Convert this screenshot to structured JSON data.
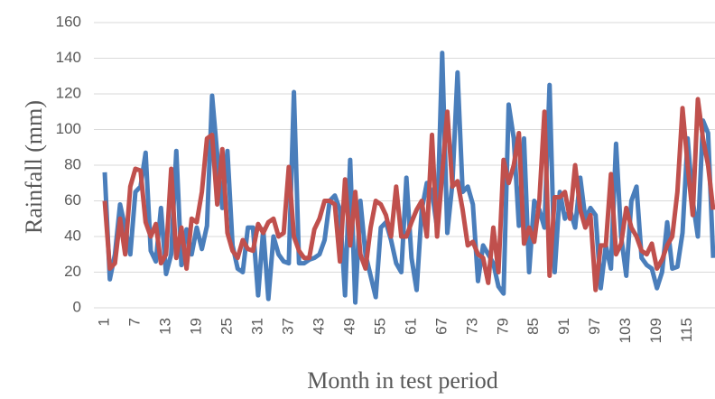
{
  "chart_data": {
    "type": "line",
    "x_label": "Month in test period",
    "y_label": "Rainfall (mm)",
    "x": [
      1,
      2,
      3,
      4,
      5,
      6,
      7,
      8,
      9,
      10,
      11,
      12,
      13,
      14,
      15,
      16,
      17,
      18,
      19,
      20,
      21,
      22,
      23,
      24,
      25,
      26,
      27,
      28,
      29,
      30,
      31,
      32,
      33,
      34,
      35,
      36,
      37,
      38,
      39,
      40,
      41,
      42,
      43,
      44,
      45,
      46,
      47,
      48,
      49,
      50,
      51,
      52,
      53,
      54,
      55,
      56,
      57,
      58,
      59,
      60,
      61,
      62,
      63,
      64,
      65,
      66,
      67,
      68,
      69,
      70,
      71,
      72,
      73,
      74,
      75,
      76,
      77,
      78,
      79,
      80,
      81,
      82,
      83,
      84,
      85,
      86,
      87,
      88,
      89,
      90,
      91,
      92,
      93,
      94,
      95,
      96,
      97,
      98,
      99,
      100,
      101,
      102,
      103,
      104,
      105,
      106,
      107,
      108,
      109,
      110,
      111,
      112,
      113,
      114,
      115,
      116,
      117,
      118,
      119,
      120
    ],
    "series": [
      {
        "color": "#4a7ebb",
        "values": [
          76,
          16,
          30,
          58,
          45,
          30,
          65,
          68,
          87,
          32,
          26,
          56,
          19,
          30,
          88,
          24,
          44,
          30,
          45,
          33,
          46,
          119,
          86,
          56,
          88,
          35,
          22,
          20,
          45,
          45,
          7,
          44,
          5,
          40,
          30,
          26,
          25,
          121,
          25,
          25,
          27,
          28,
          30,
          38,
          60,
          63,
          55,
          7,
          83,
          3,
          60,
          30,
          18,
          6,
          45,
          48,
          38,
          25,
          20,
          73,
          28,
          10,
          55,
          70,
          65,
          45,
          143,
          42,
          70,
          132,
          65,
          68,
          58,
          15,
          35,
          30,
          25,
          12,
          8,
          114,
          95,
          46,
          95,
          20,
          60,
          55,
          45,
          125,
          20,
          65,
          50,
          55,
          45,
          73,
          50,
          56,
          52,
          11,
          35,
          22,
          92,
          40,
          18,
          60,
          68,
          28,
          24,
          22,
          11,
          20,
          48,
          22,
          23,
          42,
          95,
          60,
          40,
          105,
          98,
          28
        ]
      },
      {
        "color": "#c0504d",
        "values": [
          60,
          22,
          25,
          50,
          30,
          68,
          78,
          77,
          48,
          40,
          47,
          25,
          30,
          78,
          28,
          45,
          22,
          50,
          48,
          65,
          95,
          97,
          58,
          89,
          42,
          32,
          28,
          38,
          33,
          32,
          47,
          42,
          48,
          50,
          40,
          42,
          79,
          40,
          32,
          28,
          28,
          44,
          50,
          60,
          60,
          58,
          26,
          72,
          35,
          65,
          30,
          22,
          45,
          60,
          58,
          52,
          40,
          68,
          40,
          40,
          48,
          55,
          60,
          40,
          97,
          40,
          75,
          110,
          68,
          71,
          55,
          35,
          37,
          30,
          28,
          14,
          45,
          20,
          83,
          70,
          80,
          98,
          36,
          45,
          37,
          60,
          110,
          18,
          62,
          62,
          65,
          50,
          80,
          55,
          45,
          52,
          10,
          35,
          35,
          75,
          30,
          36,
          56,
          45,
          40,
          32,
          30,
          36,
          22,
          27,
          35,
          40,
          65,
          112,
          80,
          52,
          117,
          95,
          80,
          55
        ]
      }
    ],
    "xlim": [
      1,
      120
    ],
    "xticks": [
      1,
      7,
      13,
      19,
      25,
      31,
      37,
      43,
      49,
      55,
      61,
      67,
      73,
      79,
      85,
      91,
      97,
      103,
      109,
      115
    ],
    "ylim": [
      0,
      160
    ],
    "yticks": [
      0,
      20,
      40,
      60,
      80,
      100,
      120,
      140,
      160
    ],
    "grid": true
  }
}
